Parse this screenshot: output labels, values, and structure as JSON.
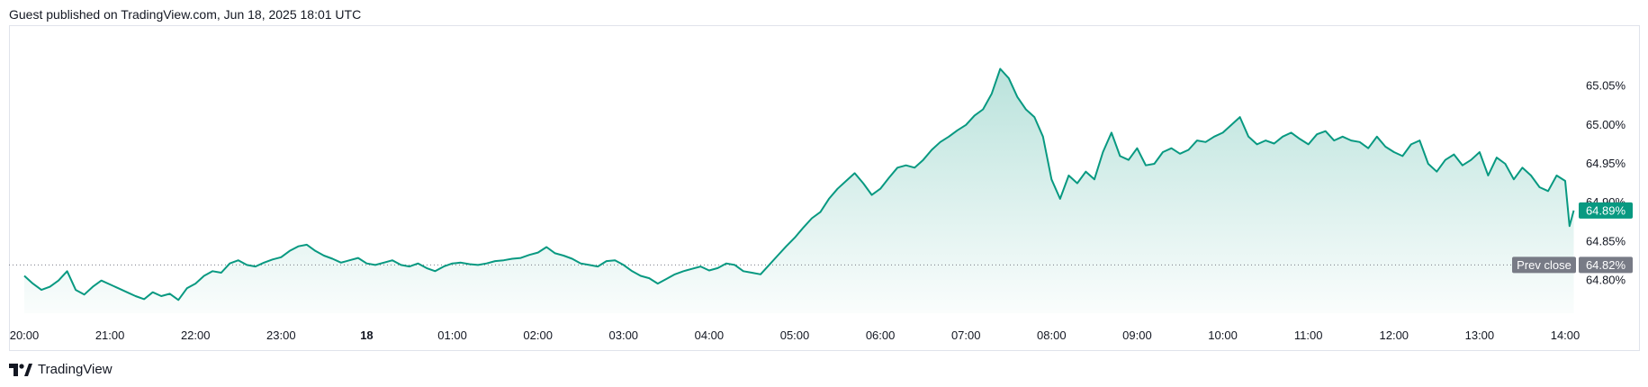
{
  "header": {
    "text": "Guest published on TradingView.com, Jun 18, 2025 18:01 UTC"
  },
  "footer": {
    "brand": "TradingView",
    "logo_icon": "tradingview-logo-icon"
  },
  "colors": {
    "line": "#089981",
    "fill_top": "#089981",
    "badge": "#089981",
    "prev_close": "#787b86",
    "axis_text": "#131722"
  },
  "chart_data": {
    "type": "area",
    "title": "",
    "xlabel": "",
    "ylabel": "",
    "x_ticks": [
      "20:00",
      "21:00",
      "22:00",
      "23:00",
      "18",
      "01:00",
      "02:00",
      "03:00",
      "04:00",
      "05:00",
      "06:00",
      "07:00",
      "08:00",
      "09:00",
      "10:00",
      "11:00",
      "12:00",
      "13:00",
      "14:00"
    ],
    "x_ticks_bold": [
      "18"
    ],
    "y_ticks": [
      "64.80%",
      "64.85%",
      "64.90%",
      "64.95%",
      "65.00%",
      "65.05%"
    ],
    "y_tick_values": [
      64.8,
      64.85,
      64.9,
      64.95,
      65.0,
      65.05
    ],
    "ylim": [
      64.758,
      65.127
    ],
    "x_domain_hours": [
      20.0,
      38.1
    ],
    "series": [
      {
        "values": [
          [
            20.0,
            64.806
          ],
          [
            20.1,
            64.796
          ],
          [
            20.2,
            64.788
          ],
          [
            20.3,
            64.792
          ],
          [
            20.4,
            64.8
          ],
          [
            20.5,
            64.812
          ],
          [
            20.6,
            64.788
          ],
          [
            20.7,
            64.782
          ],
          [
            20.8,
            64.792
          ],
          [
            20.9,
            64.8
          ],
          [
            21.0,
            64.795
          ],
          [
            21.1,
            64.79
          ],
          [
            21.2,
            64.785
          ],
          [
            21.3,
            64.78
          ],
          [
            21.4,
            64.776
          ],
          [
            21.5,
            64.785
          ],
          [
            21.6,
            64.78
          ],
          [
            21.7,
            64.783
          ],
          [
            21.8,
            64.775
          ],
          [
            21.9,
            64.79
          ],
          [
            22.0,
            64.796
          ],
          [
            22.1,
            64.806
          ],
          [
            22.2,
            64.812
          ],
          [
            22.3,
            64.81
          ],
          [
            22.4,
            64.822
          ],
          [
            22.5,
            64.826
          ],
          [
            22.6,
            64.82
          ],
          [
            22.7,
            64.818
          ],
          [
            22.8,
            64.823
          ],
          [
            22.9,
            64.827
          ],
          [
            23.0,
            64.83
          ],
          [
            23.1,
            64.838
          ],
          [
            23.2,
            64.844
          ],
          [
            23.3,
            64.846
          ],
          [
            23.4,
            64.838
          ],
          [
            23.5,
            64.832
          ],
          [
            23.6,
            64.828
          ],
          [
            23.7,
            64.823
          ],
          [
            23.8,
            64.826
          ],
          [
            23.9,
            64.829
          ],
          [
            24.0,
            64.822
          ],
          [
            24.1,
            64.82
          ],
          [
            24.2,
            64.823
          ],
          [
            24.3,
            64.826
          ],
          [
            24.4,
            64.82
          ],
          [
            24.5,
            64.818
          ],
          [
            24.6,
            64.822
          ],
          [
            24.7,
            64.816
          ],
          [
            24.8,
            64.812
          ],
          [
            24.9,
            64.818
          ],
          [
            25.0,
            64.822
          ],
          [
            25.1,
            64.823
          ],
          [
            25.2,
            64.821
          ],
          [
            25.3,
            64.82
          ],
          [
            25.4,
            64.822
          ],
          [
            25.5,
            64.825
          ],
          [
            25.6,
            64.826
          ],
          [
            25.7,
            64.828
          ],
          [
            25.8,
            64.829
          ],
          [
            25.9,
            64.833
          ],
          [
            26.0,
            64.836
          ],
          [
            26.1,
            64.843
          ],
          [
            26.2,
            64.835
          ],
          [
            26.3,
            64.832
          ],
          [
            26.4,
            64.828
          ],
          [
            26.5,
            64.822
          ],
          [
            26.6,
            64.82
          ],
          [
            26.7,
            64.818
          ],
          [
            26.8,
            64.825
          ],
          [
            26.9,
            64.826
          ],
          [
            27.0,
            64.82
          ],
          [
            27.1,
            64.812
          ],
          [
            27.2,
            64.806
          ],
          [
            27.3,
            64.803
          ],
          [
            27.4,
            64.796
          ],
          [
            27.5,
            64.802
          ],
          [
            27.6,
            64.808
          ],
          [
            27.7,
            64.812
          ],
          [
            27.8,
            64.815
          ],
          [
            27.9,
            64.818
          ],
          [
            28.0,
            64.813
          ],
          [
            28.1,
            64.816
          ],
          [
            28.2,
            64.822
          ],
          [
            28.3,
            64.82
          ],
          [
            28.4,
            64.812
          ],
          [
            28.5,
            64.81
          ],
          [
            28.6,
            64.808
          ],
          [
            28.7,
            64.82
          ],
          [
            28.8,
            64.832
          ],
          [
            28.9,
            64.844
          ],
          [
            29.0,
            64.855
          ],
          [
            29.1,
            64.868
          ],
          [
            29.2,
            64.88
          ],
          [
            29.3,
            64.888
          ],
          [
            29.4,
            64.905
          ],
          [
            29.5,
            64.918
          ],
          [
            29.6,
            64.928
          ],
          [
            29.7,
            64.938
          ],
          [
            29.8,
            64.925
          ],
          [
            29.9,
            64.91
          ],
          [
            30.0,
            64.918
          ],
          [
            30.1,
            64.932
          ],
          [
            30.2,
            64.945
          ],
          [
            30.3,
            64.948
          ],
          [
            30.4,
            64.945
          ],
          [
            30.5,
            64.955
          ],
          [
            30.6,
            64.968
          ],
          [
            30.7,
            64.978
          ],
          [
            30.8,
            64.985
          ],
          [
            30.9,
            64.993
          ],
          [
            31.0,
            65.0
          ],
          [
            31.1,
            65.012
          ],
          [
            31.2,
            65.02
          ],
          [
            31.3,
            65.04
          ],
          [
            31.4,
            65.072
          ],
          [
            31.5,
            65.06
          ],
          [
            31.6,
            65.036
          ],
          [
            31.7,
            65.02
          ],
          [
            31.8,
            65.01
          ],
          [
            31.9,
            64.985
          ],
          [
            32.0,
            64.93
          ],
          [
            32.1,
            64.905
          ],
          [
            32.2,
            64.935
          ],
          [
            32.3,
            64.925
          ],
          [
            32.4,
            64.94
          ],
          [
            32.5,
            64.93
          ],
          [
            32.6,
            64.965
          ],
          [
            32.7,
            64.99
          ],
          [
            32.8,
            64.96
          ],
          [
            32.9,
            64.955
          ],
          [
            33.0,
            64.97
          ],
          [
            33.1,
            64.948
          ],
          [
            33.2,
            64.95
          ],
          [
            33.3,
            64.965
          ],
          [
            33.4,
            64.97
          ],
          [
            33.5,
            64.963
          ],
          [
            33.6,
            64.968
          ],
          [
            33.7,
            64.98
          ],
          [
            33.8,
            64.978
          ],
          [
            33.9,
            64.985
          ],
          [
            34.0,
            64.99
          ],
          [
            34.1,
            65.0
          ],
          [
            34.2,
            65.01
          ],
          [
            34.3,
            64.985
          ],
          [
            34.4,
            64.975
          ],
          [
            34.5,
            64.98
          ],
          [
            34.6,
            64.976
          ],
          [
            34.7,
            64.985
          ],
          [
            34.8,
            64.99
          ],
          [
            34.9,
            64.982
          ],
          [
            35.0,
            64.975
          ],
          [
            35.1,
            64.988
          ],
          [
            35.2,
            64.992
          ],
          [
            35.3,
            64.98
          ],
          [
            35.4,
            64.985
          ],
          [
            35.5,
            64.98
          ],
          [
            35.6,
            64.978
          ],
          [
            35.7,
            64.97
          ],
          [
            35.8,
            64.985
          ],
          [
            35.9,
            64.972
          ],
          [
            36.0,
            64.965
          ],
          [
            36.1,
            64.96
          ],
          [
            36.2,
            64.975
          ],
          [
            36.3,
            64.98
          ],
          [
            36.4,
            64.95
          ],
          [
            36.5,
            64.94
          ],
          [
            36.6,
            64.955
          ],
          [
            36.7,
            64.962
          ],
          [
            36.8,
            64.948
          ],
          [
            36.9,
            64.955
          ],
          [
            37.0,
            64.965
          ],
          [
            37.1,
            64.935
          ],
          [
            37.2,
            64.958
          ],
          [
            37.3,
            64.95
          ],
          [
            37.4,
            64.93
          ],
          [
            37.5,
            64.945
          ],
          [
            37.6,
            64.935
          ],
          [
            37.7,
            64.92
          ],
          [
            37.8,
            64.915
          ],
          [
            37.9,
            64.935
          ],
          [
            38.0,
            64.928
          ],
          [
            38.05,
            64.87
          ],
          [
            38.1,
            64.89
          ]
        ]
      }
    ],
    "last_value": 64.89,
    "last_value_label": "64.89%",
    "prev_close": {
      "label": "Prev close",
      "value": 64.82,
      "value_label": "64.82%"
    },
    "grid": false,
    "legend": "none"
  }
}
